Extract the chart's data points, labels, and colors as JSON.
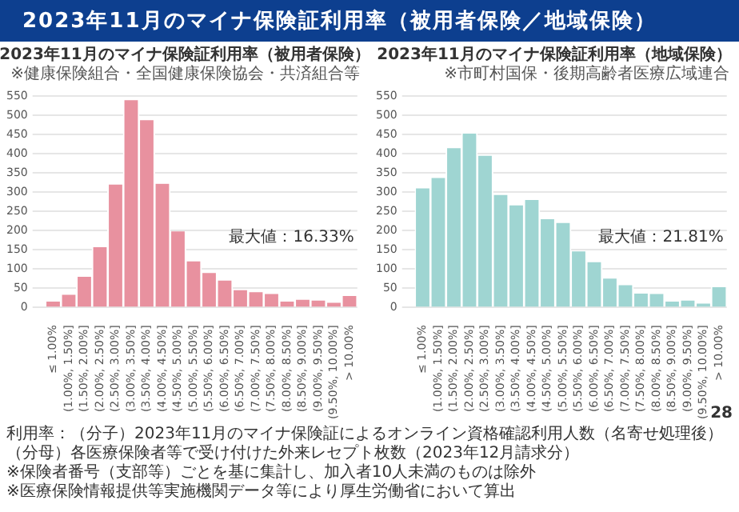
{
  "chart_data": [
    {
      "type": "other",
      "title": "2023年11月のマイナ保険証利用率（被用者保険／地域保険）"
    },
    {
      "type": "bar",
      "title": "2023年11月のマイナ保険証利用率（被用者保険）",
      "subtitle": "※健康保険組合・全国健康保険協会・共済組合等",
      "categories": [
        "≤ 1.00%",
        "(1.00%, 1.50%]",
        "(1.50%, 2.00%]",
        "(2.00%, 2.50%]",
        "(2.50%, 3.00%]",
        "(3.00%, 3.50%]",
        "(3.50%, 4.00%]",
        "(4.00%, 4.50%]",
        "(4.50%, 5.00%]",
        "(5.00%, 5.50%]",
        "(5.50%, 6.00%]",
        "(6.00%, 6.50%]",
        "(6.50%, 7.00%]",
        "(7.00%, 7.50%]",
        "(7.50%, 8.00%]",
        "(8.00%, 8.50%]",
        "(8.50%, 9.00%]",
        "(9.00%, 9.50%]",
        "(9.50%, 10.00%]",
        "> 10.00%"
      ],
      "values": [
        15,
        33,
        80,
        157,
        320,
        540,
        488,
        322,
        198,
        120,
        90,
        70,
        45,
        40,
        35,
        15,
        20,
        18,
        12,
        30
      ],
      "color": "#e8919f",
      "ylim": [
        0,
        550
      ],
      "yticks": [
        0,
        50,
        100,
        150,
        200,
        250,
        300,
        350,
        400,
        450,
        500,
        550
      ],
      "grid": "y",
      "legend": false,
      "annotations": [
        "最大値：16.33%"
      ]
    },
    {
      "type": "bar",
      "title": "2023年11月のマイナ保険証利用率（地域保険）",
      "subtitle": "※市町村国保・後期高齢者医療広域連合",
      "categories": [
        "≤ 1.00%",
        "(1.00%, 1.50%]",
        "(1.50%, 2.00%]",
        "(2.00%, 2.50%]",
        "(2.50%, 3.00%]",
        "(3.00%, 3.50%]",
        "(3.50%, 4.00%]",
        "(4.00%, 4.50%]",
        "(4.50%, 5.00%]",
        "(5.00%, 5.50%]",
        "(5.50%, 6.00%]",
        "(6.00%, 6.50%]",
        "(6.50%, 7.00%]",
        "(7.00%, 7.50%]",
        "(7.50%, 8.00%]",
        "(8.00%, 8.50%]",
        "(8.50%, 9.00%]",
        "(9.00%, 9.50%]",
        "(9.50%, 10.00%]",
        "> 10.00%"
      ],
      "values": [
        310,
        337,
        415,
        453,
        395,
        293,
        266,
        280,
        230,
        220,
        146,
        118,
        75,
        58,
        36,
        35,
        15,
        18,
        10,
        53
      ],
      "color": "#9fd5d2",
      "ylim": [
        0,
        550
      ],
      "yticks": [
        0,
        50,
        100,
        150,
        200,
        250,
        300,
        350,
        400,
        450,
        500,
        550
      ],
      "grid": "y",
      "legend": false,
      "annotations": [
        "最大値：21.81%"
      ]
    },
    {
      "type": "other",
      "annotations": [
        "利用率：（分子）2023年11月のマイナ保険証によるオンライン資格確認利用人数（名寄せ処理後）",
        "（分母）各医療保険者等で受け付けた外来レセプト枚数（2023年12月請求分）",
        "※保険者番号（支部等）ごとを基に集計し、加入者10人未満のものは除外",
        "※医療保険情報提供等実施機関データ等により厚生労働省において算出",
        "28"
      ]
    }
  ]
}
